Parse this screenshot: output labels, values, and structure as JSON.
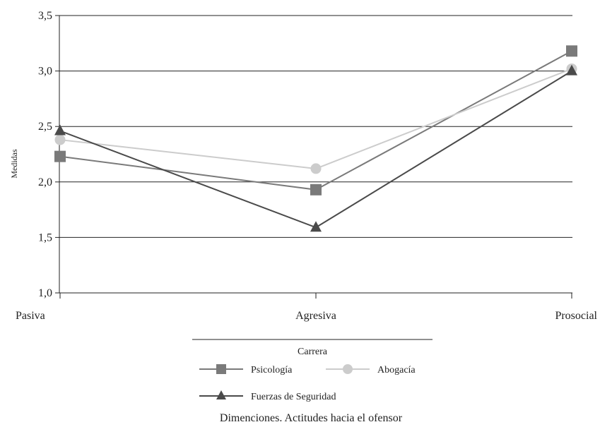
{
  "chart_data": {
    "type": "line",
    "title": "",
    "xlabel": "Dimenciones. Actitudes hacia el ofensor",
    "ylabel": "Medidas",
    "categories": [
      "Pasiva",
      "Agresiva",
      "Prosocial"
    ],
    "ylim": [
      1.0,
      3.5
    ],
    "yticks": [
      "1,0",
      "1,5",
      "2,0",
      "2,5",
      "3,0",
      "3,5"
    ],
    "grid": true,
    "legend": {
      "title": "Carrera",
      "placement": "bottom"
    },
    "series": [
      {
        "name": "Psicología",
        "values": [
          2.23,
          1.93,
          3.18
        ],
        "color": "#7a7a7a",
        "marker": "square"
      },
      {
        "name": "Abogacía",
        "values": [
          2.38,
          2.12,
          3.02
        ],
        "color": "#cccccc",
        "marker": "circle"
      },
      {
        "name": "Fuerzas de Seguridad",
        "values": [
          2.46,
          1.59,
          3.0
        ],
        "color": "#4a4a4a",
        "marker": "triangle"
      }
    ]
  }
}
